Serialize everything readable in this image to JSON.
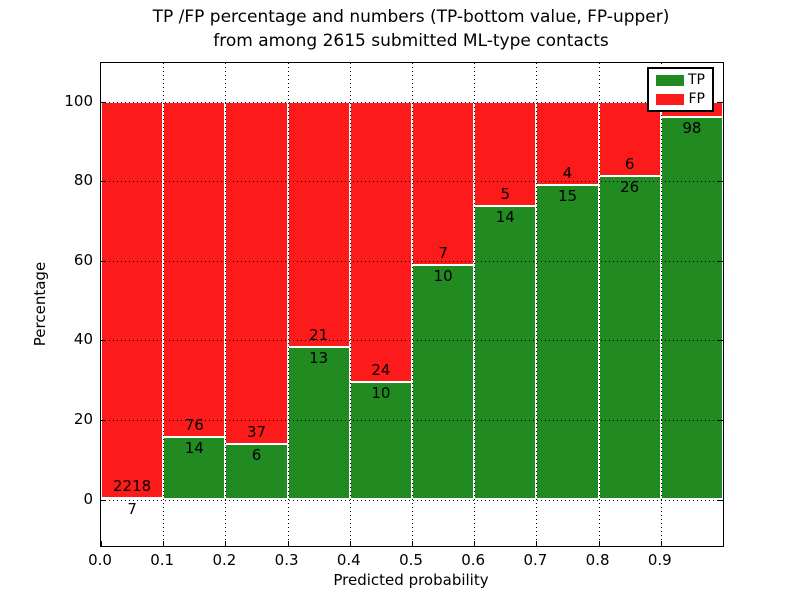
{
  "title": {
    "line1": "TP /FP percentage and numbers (TP-bottom value, FP-upper)",
    "line2": "from among 2615 submitted ML-type contacts"
  },
  "chart_data": {
    "type": "bar",
    "stacked": true,
    "title": "TP /FP percentage and numbers (TP-bottom value, FP-upper)\nfrom among 2615 submitted ML-type contacts",
    "xlabel": "Predicted probability",
    "ylabel": "Percentage",
    "total_submitted_contacts": 2615,
    "x_tick_labels": [
      "0.0",
      "0.1",
      "0.2",
      "0.3",
      "0.4",
      "0.5",
      "0.6",
      "0.7",
      "0.8",
      "0.9"
    ],
    "y_ticks": [
      0,
      20,
      40,
      60,
      80,
      100
    ],
    "xlim": [
      0.0,
      1.0
    ],
    "ylim_approx": [
      -11.7,
      109.7
    ],
    "grid": "dotted black, drawn above bars",
    "bar_edge_color": "#ffffff",
    "colors": {
      "tp": "#218a21",
      "fp": "#fc1a1a"
    },
    "legend": {
      "position": "upper right",
      "entries": [
        {
          "label": "TP",
          "color": "#218a21"
        },
        {
          "label": "FP",
          "color": "#fc1a1a"
        }
      ]
    },
    "bins": [
      {
        "range": [
          0.0,
          0.1
        ],
        "tp": 7,
        "fp": 2218,
        "tp_pct": 0.3
      },
      {
        "range": [
          0.1,
          0.2
        ],
        "tp": 14,
        "fp": 76,
        "tp_pct": 15.6
      },
      {
        "range": [
          0.2,
          0.3
        ],
        "tp": 6,
        "fp": 37,
        "tp_pct": 14.0
      },
      {
        "range": [
          0.3,
          0.4
        ],
        "tp": 13,
        "fp": 21,
        "tp_pct": 38.2
      },
      {
        "range": [
          0.4,
          0.5
        ],
        "tp": 10,
        "fp": 24,
        "tp_pct": 29.4
      },
      {
        "range": [
          0.5,
          0.6
        ],
        "tp": 10,
        "fp": 7,
        "tp_pct": 58.8
      },
      {
        "range": [
          0.6,
          0.7
        ],
        "tp": 14,
        "fp": 5,
        "tp_pct": 73.7
      },
      {
        "range": [
          0.7,
          0.8
        ],
        "tp": 15,
        "fp": 4,
        "tp_pct": 78.9
      },
      {
        "range": [
          0.8,
          0.9
        ],
        "tp": 26,
        "fp": 6,
        "tp_pct": 81.3
      },
      {
        "range": [
          0.9,
          1.0
        ],
        "tp": 98,
        "fp": null,
        "tp_pct": 96.1
      }
    ]
  }
}
